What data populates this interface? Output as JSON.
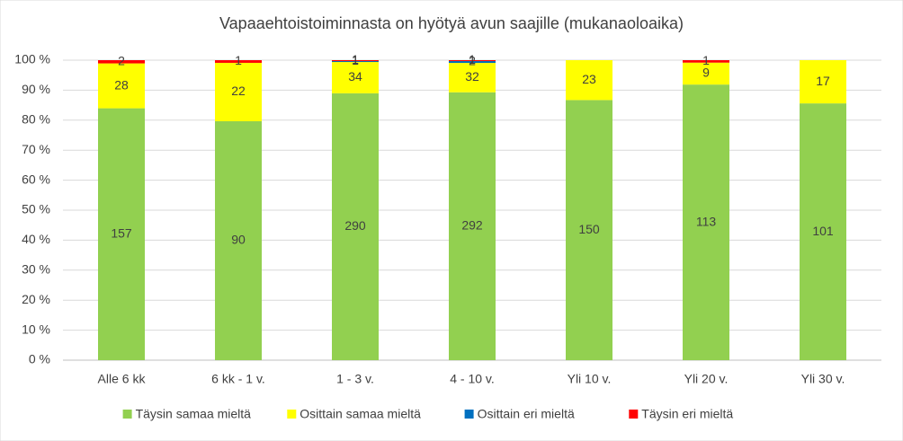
{
  "chart_data": {
    "type": "bar",
    "stacking": "percent",
    "title": "Vapaaehtoistoiminnasta on hyötyä avun saajille (mukanaoloaika)",
    "categories": [
      "Alle 6 kk",
      "6 kk - 1 v.",
      "1 - 3 v.",
      "4 - 10 v.",
      "Yli 10 v.",
      "Yli 20 v.",
      "Yli 30 v."
    ],
    "series": [
      {
        "name": "Täysin samaa mieltä",
        "color": "#92d050",
        "values": [
          157,
          90,
          290,
          292,
          150,
          113,
          101
        ]
      },
      {
        "name": "Osittain samaa mieltä",
        "color": "#ffff00",
        "values": [
          28,
          22,
          34,
          32,
          23,
          9,
          17
        ]
      },
      {
        "name": "Osittain eri mieltä",
        "color": "#0070c0",
        "values": [
          null,
          null,
          1,
          2,
          null,
          null,
          null
        ]
      },
      {
        "name": "Täysin eri mieltä",
        "color": "#ff0000",
        "values": [
          2,
          1,
          1,
          1,
          null,
          1,
          null
        ]
      }
    ],
    "ylim": [
      0,
      100
    ],
    "yticks": [
      {
        "value": 0,
        "label": "0 %"
      },
      {
        "value": 10,
        "label": "10 %"
      },
      {
        "value": 20,
        "label": "20 %"
      },
      {
        "value": 30,
        "label": "30 %"
      },
      {
        "value": 40,
        "label": "40 %"
      },
      {
        "value": 50,
        "label": "50 %"
      },
      {
        "value": 60,
        "label": "60 %"
      },
      {
        "value": 70,
        "label": "70 %"
      },
      {
        "value": 80,
        "label": "80 %"
      },
      {
        "value": 90,
        "label": "90 %"
      },
      {
        "value": 100,
        "label": "100 %"
      }
    ],
    "legend": "bottom"
  }
}
